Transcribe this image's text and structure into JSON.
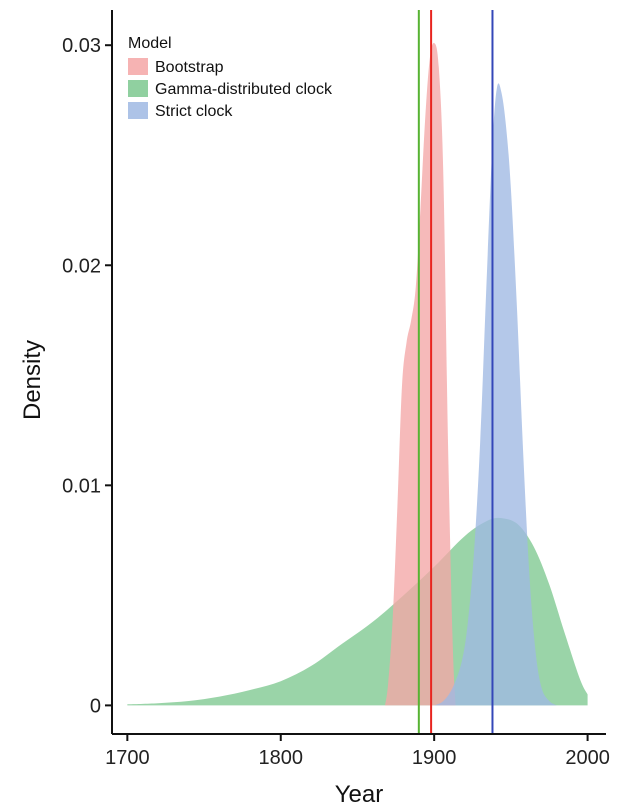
{
  "chart_data": {
    "type": "area",
    "xlabel": "Year",
    "ylabel": "Density",
    "xlim": [
      1690,
      2012
    ],
    "ylim": [
      -0.0013,
      0.0316
    ],
    "x_ticks": [
      1700,
      1800,
      1900,
      2000
    ],
    "x_tick_labels": [
      "1700",
      "1800",
      "1900",
      "2000"
    ],
    "y_ticks": [
      0,
      0.01,
      0.02,
      0.03
    ],
    "y_tick_labels": [
      "0",
      "0.01",
      "0.02",
      "0.03"
    ],
    "grid": false,
    "legend": {
      "title": "Model",
      "position": "top-left",
      "entries": [
        "Bootstrap",
        "Gamma-distributed clock",
        "Strict clock"
      ]
    },
    "series": [
      {
        "name": "Bootstrap",
        "color": "#f4a6a6",
        "line_color": "#e8241f",
        "vertical_line": 1898,
        "x": [
          1868,
          1870,
          1873,
          1876,
          1879,
          1882,
          1885,
          1888,
          1891,
          1894,
          1897,
          1900,
          1903,
          1906,
          1909,
          1912,
          1914
        ],
        "y": [
          0,
          0.001,
          0.004,
          0.009,
          0.0145,
          0.0165,
          0.0175,
          0.019,
          0.0225,
          0.0265,
          0.0293,
          0.0301,
          0.029,
          0.024,
          0.012,
          0.003,
          0
        ]
      },
      {
        "name": "Gamma-distributed clock",
        "color": "#7dc88f",
        "line_color": "#57b333",
        "vertical_line": 1890,
        "x": [
          1700,
          1720,
          1740,
          1760,
          1780,
          1800,
          1820,
          1840,
          1860,
          1880,
          1900,
          1920,
          1935,
          1945,
          1955,
          1965,
          1975,
          1985,
          1995,
          2000
        ],
        "y": [
          5e-05,
          0.0001,
          0.0002,
          0.0004,
          0.0007,
          0.0011,
          0.0018,
          0.0028,
          0.0038,
          0.005,
          0.0063,
          0.0077,
          0.0084,
          0.0085,
          0.0082,
          0.0072,
          0.0055,
          0.0033,
          0.0012,
          0.0005
        ]
      },
      {
        "name": "Strict clock",
        "color": "#9fb8e3",
        "line_color": "#3447b8",
        "vertical_line": 1938,
        "x": [
          1900,
          1906,
          1912,
          1918,
          1922,
          1926,
          1930,
          1934,
          1938,
          1941,
          1944,
          1947,
          1950,
          1954,
          1958,
          1962,
          1966,
          1970,
          1975,
          1980
        ],
        "y": [
          0,
          0.0002,
          0.0008,
          0.002,
          0.0038,
          0.007,
          0.012,
          0.019,
          0.0255,
          0.0281,
          0.0278,
          0.0262,
          0.0235,
          0.018,
          0.0115,
          0.006,
          0.0025,
          0.0008,
          0.0002,
          0
        ]
      }
    ]
  }
}
